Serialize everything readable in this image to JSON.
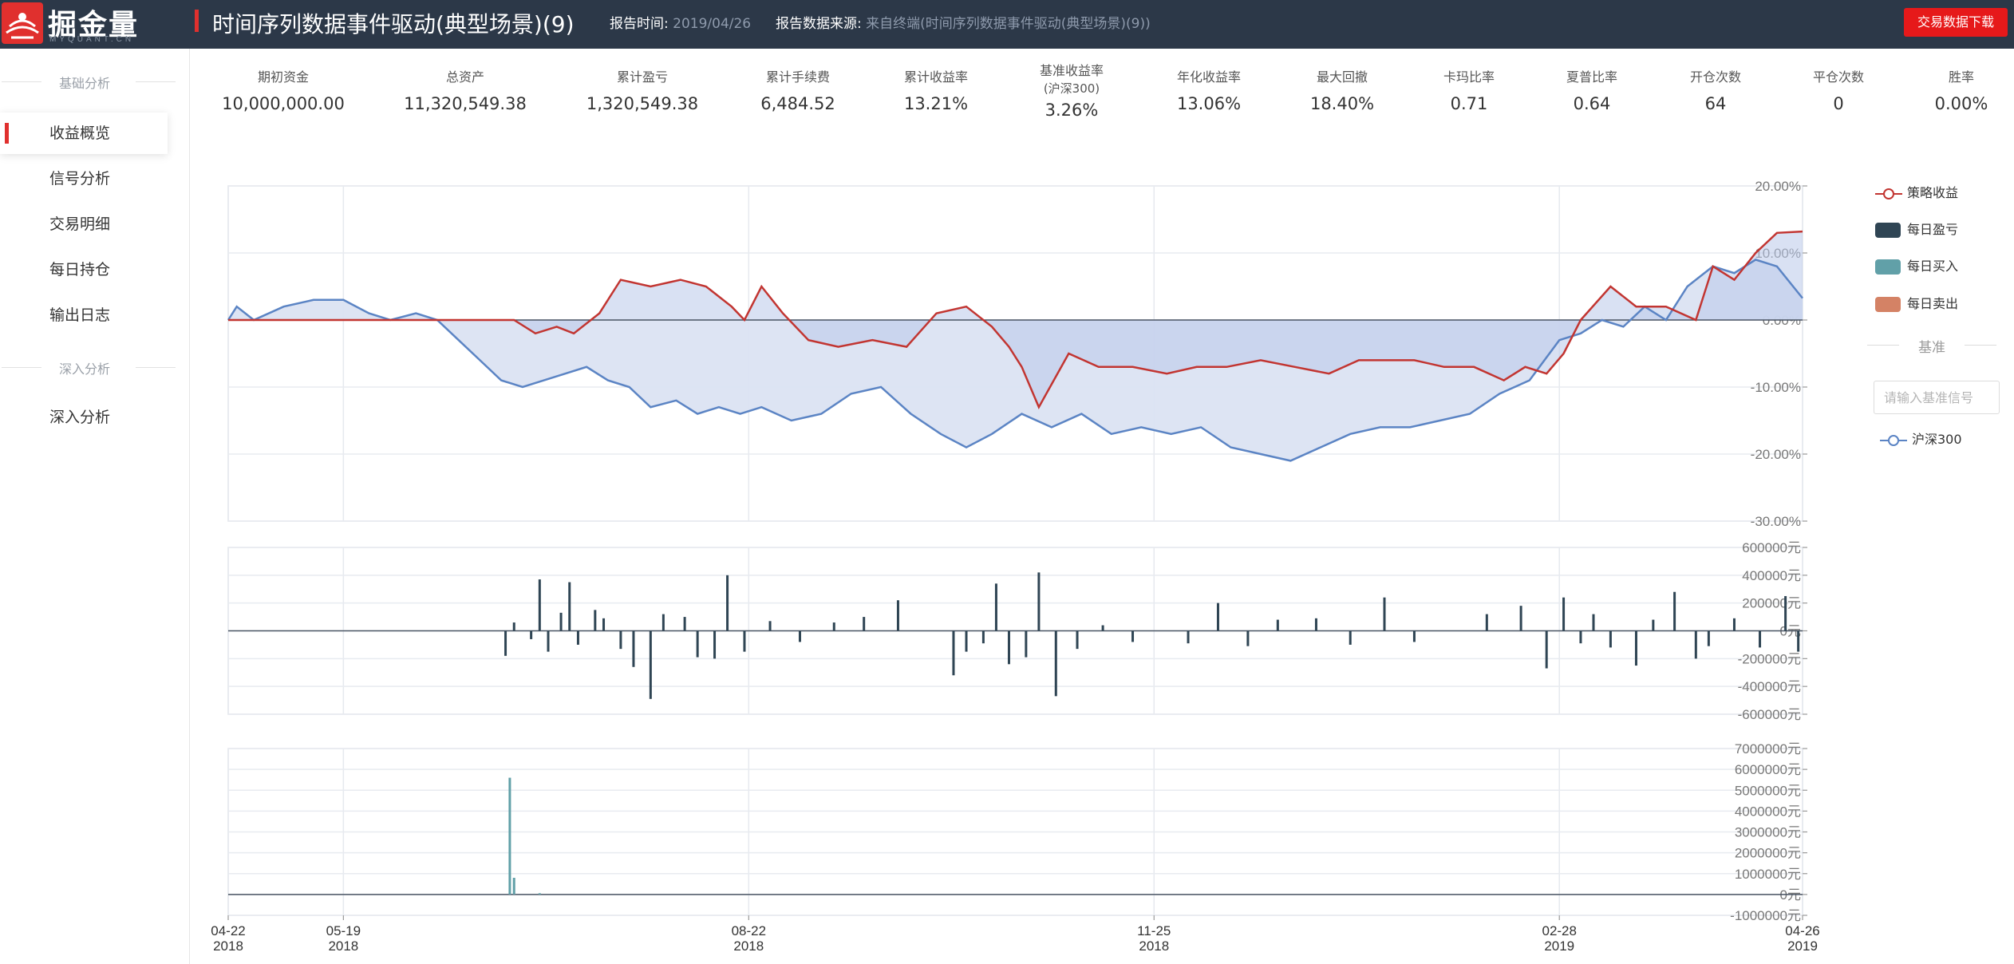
{
  "header": {
    "logo_text": "掘金量化",
    "logo_sub": "MYQUANT.CN",
    "report_title": "时间序列数据事件驱动(典型场景)(9)",
    "report_time_label": "报告时间:",
    "report_time_value": "2019/04/26",
    "source_label": "报告数据来源:",
    "source_value": "来自终端(时间序列数据事件驱动(典型场景)(9))",
    "download_label": "交易数据下载"
  },
  "sidebar": {
    "section_basic": "基础分析",
    "items": [
      {
        "label": "收益概览",
        "active": true
      },
      {
        "label": "信号分析"
      },
      {
        "label": "交易明细"
      },
      {
        "label": "每日持仓"
      },
      {
        "label": "输出日志"
      }
    ],
    "section_deep": "深入分析",
    "deep_items": [
      {
        "label": "深入分析"
      }
    ]
  },
  "stats": [
    {
      "label": "期初资金",
      "value": "10,000,000.00"
    },
    {
      "label": "总资产",
      "value": "11,320,549.38"
    },
    {
      "label": "累计盈亏",
      "value": "1,320,549.38"
    },
    {
      "label": "累计手续费",
      "value": "6,484.52"
    },
    {
      "label": "累计收益率",
      "value": "13.21%"
    },
    {
      "label": "基准收益率",
      "sub": "(沪深300)",
      "value": "3.26%"
    },
    {
      "label": "年化收益率",
      "value": "13.06%"
    },
    {
      "label": "最大回撤",
      "value": "18.40%"
    },
    {
      "label": "卡玛比率",
      "value": "0.71"
    },
    {
      "label": "夏普比率",
      "value": "0.64"
    },
    {
      "label": "开仓次数",
      "value": "64"
    },
    {
      "label": "平仓次数",
      "value": "0"
    },
    {
      "label": "胜率",
      "value": "0.00%"
    }
  ],
  "legend": {
    "strategy": "策略收益",
    "daily_pnl": "每日盈亏",
    "daily_buy": "每日买入",
    "daily_sell": "每日卖出",
    "baseline_title": "基准",
    "baseline_placeholder": "请输入基准信号",
    "benchmark": "沪深300"
  },
  "colors": {
    "header_bg": "#2c3848",
    "accent_red": "#e0302e",
    "strategy_line": "#c23531",
    "benchmark_line": "#5b84c4",
    "area_fill": "#dbe3f2",
    "pnl_bar": "#2f4554",
    "buy_bar": "#61a0a8",
    "sell_bar": "#d48265"
  },
  "chart_data": [
    {
      "type": "line",
      "title": "",
      "x_ticks": [
        {
          "date": "04-22",
          "year": "2018"
        },
        {
          "date": "05-19",
          "year": "2018"
        },
        {
          "date": "08-22",
          "year": "2018"
        },
        {
          "date": "11-25",
          "year": "2018"
        },
        {
          "date": "02-28",
          "year": "2019"
        },
        {
          "date": "04-26",
          "year": "2019"
        }
      ],
      "y_ticks": [
        "20.00%",
        "10.00%",
        "0.00%",
        "-10.00%",
        "-20.00%",
        "-30.00%"
      ],
      "ylim": [
        -30,
        20
      ],
      "series": [
        {
          "name": "策略收益",
          "x": [
            "2018-04-22",
            "2018-05-10",
            "2018-06-10",
            "2018-06-28",
            "2018-07-03",
            "2018-07-08",
            "2018-07-12",
            "2018-07-18",
            "2018-07-23",
            "2018-07-30",
            "2018-08-06",
            "2018-08-12",
            "2018-08-18",
            "2018-08-21",
            "2018-08-25",
            "2018-08-30",
            "2018-09-05",
            "2018-09-12",
            "2018-09-20",
            "2018-09-28",
            "2018-10-05",
            "2018-10-12",
            "2018-10-18",
            "2018-10-22",
            "2018-10-25",
            "2018-10-29",
            "2018-11-05",
            "2018-11-12",
            "2018-11-20",
            "2018-11-28",
            "2018-12-05",
            "2018-12-12",
            "2018-12-20",
            "2018-12-28",
            "2019-01-05",
            "2019-01-12",
            "2019-01-18",
            "2019-01-25",
            "2019-02-01",
            "2019-02-08",
            "2019-02-15",
            "2019-02-20",
            "2019-02-25",
            "2019-03-01",
            "2019-03-05",
            "2019-03-12",
            "2019-03-18",
            "2019-03-25",
            "2019-04-01",
            "2019-04-05",
            "2019-04-10",
            "2019-04-15",
            "2019-04-20",
            "2019-04-26"
          ],
          "y": [
            0,
            0,
            0,
            0,
            -2,
            -1,
            -2,
            1,
            6,
            5,
            6,
            5,
            2,
            0,
            5,
            1,
            -3,
            -4,
            -3,
            -4,
            1,
            2,
            -1,
            -4,
            -7,
            -13,
            -5,
            -7,
            -7,
            -8,
            -7,
            -7,
            -6,
            -7,
            -8,
            -6,
            -6,
            -6,
            -7,
            -7,
            -9,
            -7,
            -8,
            -5,
            0,
            5,
            2,
            2,
            0,
            8,
            6,
            10,
            13,
            13.2
          ]
        },
        {
          "name": "沪深300",
          "x": [
            "2018-04-22",
            "2018-04-24",
            "2018-04-28",
            "2018-05-05",
            "2018-05-12",
            "2018-05-19",
            "2018-05-25",
            "2018-05-30",
            "2018-06-05",
            "2018-06-10",
            "2018-06-15",
            "2018-06-20",
            "2018-06-25",
            "2018-06-30",
            "2018-07-05",
            "2018-07-10",
            "2018-07-15",
            "2018-07-20",
            "2018-07-25",
            "2018-07-30",
            "2018-08-05",
            "2018-08-10",
            "2018-08-15",
            "2018-08-20",
            "2018-08-25",
            "2018-09-01",
            "2018-09-08",
            "2018-09-15",
            "2018-09-22",
            "2018-09-29",
            "2018-10-06",
            "2018-10-12",
            "2018-10-18",
            "2018-10-25",
            "2018-11-01",
            "2018-11-08",
            "2018-11-15",
            "2018-11-22",
            "2018-11-29",
            "2018-12-06",
            "2018-12-13",
            "2018-12-20",
            "2018-12-27",
            "2019-01-03",
            "2019-01-10",
            "2019-01-17",
            "2019-01-24",
            "2019-01-31",
            "2019-02-07",
            "2019-02-14",
            "2019-02-21",
            "2019-02-28",
            "2019-03-05",
            "2019-03-10",
            "2019-03-15",
            "2019-03-20",
            "2019-03-25",
            "2019-03-30",
            "2019-04-05",
            "2019-04-10",
            "2019-04-15",
            "2019-04-20",
            "2019-04-26"
          ],
          "y": [
            0,
            2,
            0,
            2,
            3,
            3,
            1,
            0,
            1,
            0,
            -3,
            -6,
            -9,
            -10,
            -9,
            -8,
            -7,
            -9,
            -10,
            -13,
            -12,
            -14,
            -13,
            -14,
            -13,
            -15,
            -14,
            -11,
            -10,
            -14,
            -17,
            -19,
            -17,
            -14,
            -16,
            -14,
            -17,
            -16,
            -17,
            -16,
            -19,
            -20,
            -21,
            -19,
            -17,
            -16,
            -16,
            -15,
            -14,
            -11,
            -9,
            -3,
            -2,
            0,
            -1,
            2,
            0,
            5,
            8,
            7,
            9,
            8,
            3.26
          ]
        }
      ]
    },
    {
      "type": "bar",
      "title": "",
      "y_ticks": [
        "600000元",
        "400000元",
        "200000元",
        "0元",
        "-200000元",
        "-400000元",
        "-600000元"
      ],
      "ylim": [
        -600000,
        600000
      ],
      "series": [
        {
          "name": "每日盈亏",
          "x": [
            "2018-06-26",
            "2018-06-28",
            "2018-07-02",
            "2018-07-04",
            "2018-07-06",
            "2018-07-09",
            "2018-07-11",
            "2018-07-13",
            "2018-07-17",
            "2018-07-19",
            "2018-07-23",
            "2018-07-26",
            "2018-07-30",
            "2018-08-02",
            "2018-08-07",
            "2018-08-10",
            "2018-08-14",
            "2018-08-17",
            "2018-08-21",
            "2018-08-27",
            "2018-09-03",
            "2018-09-11",
            "2018-09-18",
            "2018-09-26",
            "2018-10-09",
            "2018-10-12",
            "2018-10-16",
            "2018-10-19",
            "2018-10-22",
            "2018-10-26",
            "2018-10-29",
            "2018-11-02",
            "2018-11-07",
            "2018-11-13",
            "2018-11-20",
            "2018-12-03",
            "2018-12-10",
            "2018-12-17",
            "2018-12-24",
            "2019-01-02",
            "2019-01-10",
            "2019-01-18",
            "2019-01-25",
            "2019-02-11",
            "2019-02-19",
            "2019-02-25",
            "2019-03-01",
            "2019-03-05",
            "2019-03-08",
            "2019-03-12",
            "2019-03-18",
            "2019-03-22",
            "2019-03-27",
            "2019-04-01",
            "2019-04-04",
            "2019-04-10",
            "2019-04-16",
            "2019-04-22",
            "2019-04-25"
          ],
          "y": [
            -180000,
            60000,
            -60000,
            370000,
            -150000,
            130000,
            350000,
            -100000,
            150000,
            90000,
            -130000,
            -260000,
            -490000,
            120000,
            100000,
            -190000,
            -200000,
            400000,
            -150000,
            70000,
            -80000,
            60000,
            100000,
            220000,
            -320000,
            -150000,
            -90000,
            340000,
            -240000,
            -190000,
            420000,
            -470000,
            -130000,
            40000,
            -80000,
            -90000,
            200000,
            -110000,
            80000,
            90000,
            -100000,
            240000,
            -80000,
            120000,
            180000,
            -270000,
            240000,
            -90000,
            120000,
            -120000,
            -250000,
            80000,
            280000,
            -200000,
            -110000,
            90000,
            -120000,
            250000,
            -150000
          ]
        },
        {
          "name": "每日卖出",
          "x": [],
          "y": []
        }
      ]
    },
    {
      "type": "bar",
      "title": "",
      "y_ticks": [
        "7000000元",
        "6000000元",
        "5000000元",
        "4000000元",
        "3000000元",
        "2000000元",
        "1000000元",
        "0元",
        "-1000000元"
      ],
      "ylim": [
        -1000000,
        7000000
      ],
      "series": [
        {
          "name": "每日买入",
          "x": [
            "2018-06-27",
            "2018-06-28",
            "2018-07-04"
          ],
          "y": [
            5600000,
            800000,
            60000
          ]
        }
      ]
    }
  ]
}
